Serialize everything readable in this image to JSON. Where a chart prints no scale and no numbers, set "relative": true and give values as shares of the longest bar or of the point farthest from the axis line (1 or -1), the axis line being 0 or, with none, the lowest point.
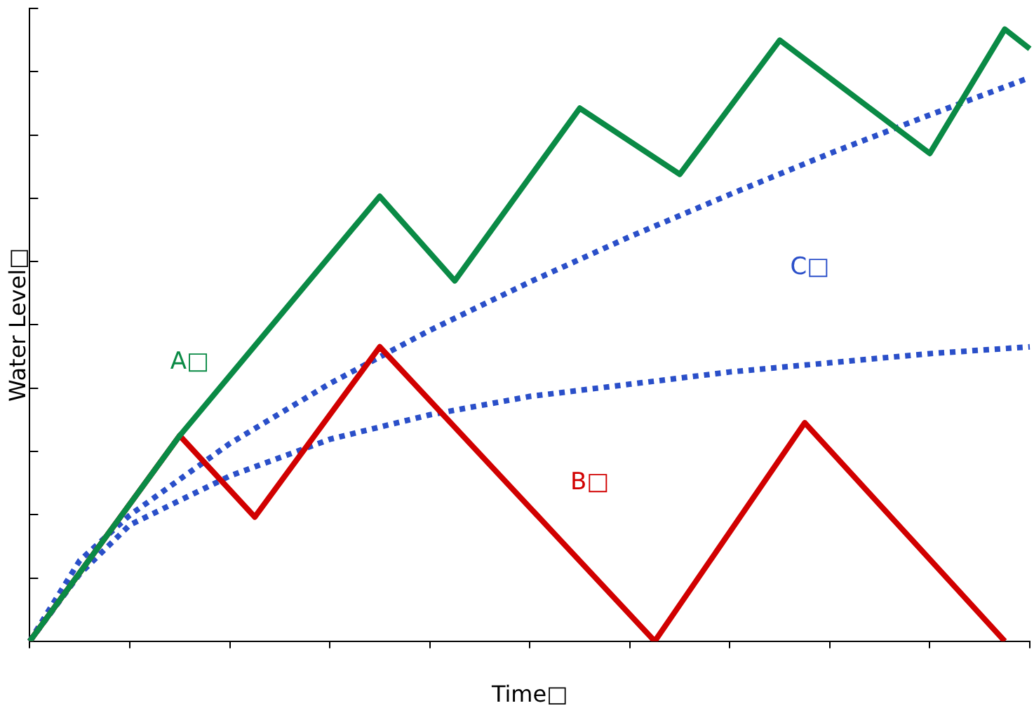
{
  "chart_data": {
    "type": "line",
    "relative": true,
    "xlabel": "Time□",
    "ylabel": "Water Level□",
    "legend": false,
    "grid": false,
    "marker": "none",
    "categories": [
      null,
      null,
      null,
      null,
      null,
      null,
      null,
      null,
      null,
      null,
      null,
      null,
      null,
      null,
      null,
      null,
      null,
      null,
      null,
      null,
      null,
      null,
      null,
      null,
      null,
      null,
      null,
      null,
      null,
      null,
      null,
      null,
      null,
      null,
      null,
      null,
      null,
      null,
      null,
      null,
      null
    ],
    "series": [
      {
        "name": "A□",
        "color": "#0a8a45",
        "line_style": "solid",
        "values": [
          0,
          null,
          null,
          null,
          null,
          null,
          0.336,
          null,
          null,
          null,
          null,
          null,
          null,
          null,
          0.727,
          null,
          null,
          0.589,
          null,
          null,
          null,
          null,
          0.871,
          null,
          null,
          null,
          0.763,
          null,
          null,
          null,
          0.982,
          null,
          null,
          null,
          null,
          null,
          0.797,
          null,
          null,
          1,
          0.968
        ]
      },
      {
        "name": "B□",
        "color": "#d10000",
        "line_style": "solid",
        "values": [
          0,
          null,
          null,
          null,
          null,
          null,
          0.336,
          null,
          null,
          0.203,
          null,
          null,
          null,
          null,
          0.481,
          null,
          null,
          null,
          null,
          null,
          null,
          null,
          null,
          null,
          null,
          0,
          null,
          null,
          null,
          null,
          null,
          0.357,
          null,
          null,
          null,
          null,
          null,
          null,
          null,
          0,
          null
        ]
      },
      {
        "name": "C□",
        "color": "#2a4fc9",
        "line_style": "dotted",
        "values": [
          0,
          null,
          0.132,
          null,
          0.206,
          null,
          null,
          null,
          0.323,
          null,
          null,
          null,
          0.421,
          null,
          null,
          null,
          0.508,
          null,
          null,
          null,
          0.587,
          null,
          null,
          null,
          0.661,
          null,
          null,
          null,
          0.73,
          null,
          null,
          null,
          0.797,
          null,
          null,
          null,
          0.86,
          null,
          null,
          null,
          0.921
        ]
      },
      {
        "color": "#2a4fc9",
        "line_style": "dotted",
        "values": [
          0,
          null,
          0.11,
          null,
          0.19,
          null,
          null,
          null,
          0.27,
          null,
          null,
          null,
          0.33,
          null,
          null,
          null,
          0.37,
          null,
          null,
          null,
          0.4,
          null,
          null,
          null,
          0.42,
          null,
          null,
          null,
          0.44,
          null,
          null,
          null,
          0.455,
          null,
          null,
          null,
          0.47,
          null,
          null,
          null,
          0.481
        ]
      }
    ]
  }
}
